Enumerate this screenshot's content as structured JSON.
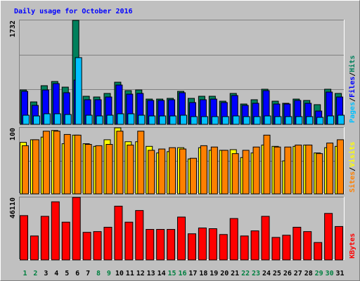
{
  "chart_data": [
    {
      "type": "bar",
      "title": "Daily usage for October 2016",
      "ylim": [
        0,
        1732
      ],
      "yticks": [
        1732
      ],
      "legend_separator": "/",
      "series": [
        {
          "name": "Hits",
          "color": "#00805c",
          "values": [
            573,
            374,
            644,
            714,
            620,
            1732,
            468,
            456,
            515,
            702,
            562,
            573,
            421,
            421,
            433,
            550,
            433,
            468,
            468,
            386,
            515,
            339,
            410,
            585,
            386,
            351,
            421,
            398,
            328,
            585,
            515
          ]
        },
        {
          "name": "Files",
          "color": "#0000ff",
          "values": [
            550,
            316,
            573,
            679,
            527,
            737,
            410,
            410,
            456,
            655,
            503,
            515,
            398,
            398,
            410,
            527,
            363,
            410,
            421,
            363,
            480,
            316,
            351,
            562,
            339,
            339,
            398,
            351,
            222,
            538,
            456
          ]
        },
        {
          "name": "Pages",
          "color": "#00c0ff",
          "values": [
            152,
            140,
            176,
            176,
            164,
            1112,
            152,
            140,
            152,
            176,
            176,
            152,
            140,
            140,
            140,
            152,
            129,
            129,
            129,
            129,
            140,
            129,
            129,
            140,
            129,
            129,
            129,
            129,
            117,
            140,
            152
          ]
        }
      ]
    },
    {
      "type": "bar",
      "ylim": [
        0,
        100
      ],
      "yticks": [
        100
      ],
      "legend_separator": "/",
      "series": [
        {
          "name": "Visits",
          "color": "#ffff00",
          "values": [
            78,
            82,
            86,
            96,
            76,
            89,
            76,
            72,
            82,
            100,
            79,
            79,
            72,
            62,
            64,
            70,
            53,
            70,
            66,
            66,
            67,
            55,
            62,
            74,
            72,
            50,
            72,
            74,
            62,
            70,
            72
          ]
        },
        {
          "name": "Sites",
          "color": "#ff8000",
          "values": [
            73,
            82,
            95,
            95,
            90,
            89,
            75,
            73,
            75,
            95,
            74,
            95,
            66,
            68,
            70,
            68,
            54,
            73,
            71,
            66,
            61,
            66,
            71,
            89,
            71,
            71,
            74,
            74,
            61,
            77,
            82
          ]
        }
      ]
    },
    {
      "type": "bar",
      "ylim": [
        0,
        46110
      ],
      "yticks": [
        46110
      ],
      "categories": [
        "1",
        "2",
        "3",
        "4",
        "5",
        "6",
        "7",
        "8",
        "9",
        "10",
        "11",
        "12",
        "13",
        "14",
        "15",
        "16",
        "17",
        "18",
        "19",
        "20",
        "21",
        "22",
        "23",
        "24",
        "25",
        "26",
        "27",
        "28",
        "29",
        "30",
        "31"
      ],
      "label_colors": [
        "#008040",
        "#008040",
        "#000000",
        "#000000",
        "#000000",
        "#000000",
        "#000000",
        "#008040",
        "#008040",
        "#000000",
        "#000000",
        "#000000",
        "#000000",
        "#000000",
        "#008040",
        "#008040",
        "#000000",
        "#000000",
        "#000000",
        "#000000",
        "#000000",
        "#008040",
        "#008040",
        "#000000",
        "#000000",
        "#000000",
        "#000000",
        "#000000",
        "#008040",
        "#008040",
        "#000000"
      ],
      "series": [
        {
          "name": "KBytes",
          "color": "#ff0000",
          "values": [
            32696,
            17688,
            32160,
            42880,
            27872,
            46110,
            20368,
            20904,
            24120,
            39664,
            27872,
            36448,
            22512,
            22512,
            22512,
            31624,
            19296,
            23584,
            23048,
            18760,
            30552,
            17688,
            21440,
            32160,
            16616,
            18224,
            24120,
            20904,
            12864,
            34304,
            24656
          ]
        }
      ]
    }
  ]
}
